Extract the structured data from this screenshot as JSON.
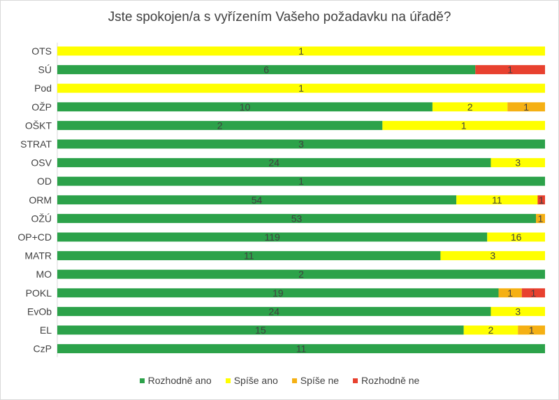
{
  "chart_data": {
    "type": "bar",
    "orientation": "horizontal",
    "stacked": "percent",
    "title": "Jste spokojen/a s vyřízením Vašeho požadavku na úřadě?",
    "xlabel": "",
    "ylabel": "",
    "grid": false,
    "legend_position": "bottom",
    "categories": [
      "OTS",
      "SÚ",
      "Pod",
      "OŽP",
      "OŠKT",
      "STRAT",
      "OSV",
      "OD",
      "ORM",
      "OŽÚ",
      "OP+CD",
      "MATR",
      "MO",
      "POKL",
      "EvOb",
      "EL",
      "CzP"
    ],
    "series": [
      {
        "name": "Rozhodně ano",
        "color": "#2ca24a",
        "values": [
          0,
          6,
          0,
          10,
          2,
          3,
          24,
          1,
          54,
          53,
          119,
          11,
          2,
          19,
          24,
          15,
          11
        ]
      },
      {
        "name": "Spíše ano",
        "color": "#ffff00",
        "values": [
          1,
          0,
          1,
          2,
          1,
          0,
          3,
          0,
          11,
          0,
          16,
          3,
          0,
          0,
          3,
          2,
          0
        ]
      },
      {
        "name": "Spíše ne",
        "color": "#f5b014",
        "values": [
          0,
          0,
          0,
          1,
          0,
          0,
          0,
          0,
          0,
          1,
          0,
          0,
          0,
          1,
          0,
          1,
          0
        ]
      },
      {
        "name": "Rozhodně ne",
        "color": "#e8412f",
        "values": [
          0,
          1,
          0,
          0,
          0,
          0,
          0,
          0,
          1,
          0,
          0,
          0,
          0,
          1,
          0,
          0,
          0
        ]
      }
    ]
  }
}
